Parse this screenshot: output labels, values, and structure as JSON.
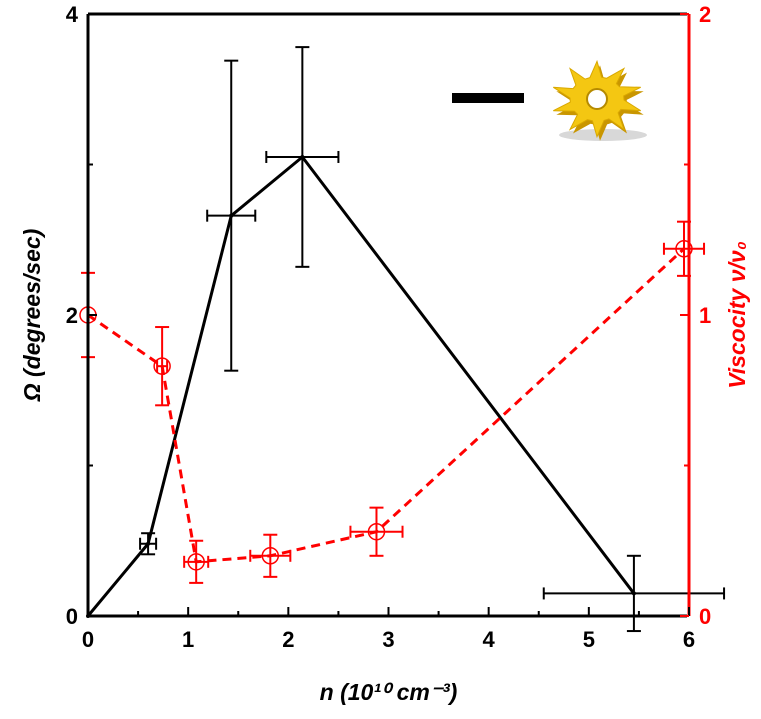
{
  "chart_data": {
    "type": "line",
    "xlabel": "n (10¹⁰ cm⁻³)",
    "ylabel_left": "Ω (degrees/sec)",
    "ylabel_right": "Viscocity ν/ν₀",
    "xlim": [
      0,
      6
    ],
    "ylim_left": [
      0,
      4
    ],
    "ylim_right": [
      0,
      2
    ],
    "x_ticks": [
      "0",
      "1",
      "2",
      "3",
      "4",
      "5",
      "6"
    ],
    "y_left_ticks": [
      "0",
      "2",
      "4"
    ],
    "y_right_ticks": [
      "0",
      "1",
      "2"
    ],
    "grid": false,
    "colors": {
      "omega": "#000000",
      "viscosity": "#ff0000"
    },
    "series": [
      {
        "axis": "left",
        "style": "solid",
        "color": "#000000",
        "points": [
          {
            "x": 0.0,
            "y": 0.0
          },
          {
            "x": 0.6,
            "y": 0.48,
            "xerr": 0.08,
            "yerr": 0.07
          },
          {
            "x": 1.43,
            "y": 2.66,
            "xerr": 0.24,
            "yerr": 1.03
          },
          {
            "x": 2.14,
            "y": 3.05,
            "xerr": 0.36,
            "yerr": 0.73
          },
          {
            "x": 5.45,
            "y": 0.15,
            "xerr": 0.9,
            "yerr": 0.25
          }
        ]
      },
      {
        "axis": "right",
        "style": "dashed",
        "color": "#ff0000",
        "points": [
          {
            "x": 0.0,
            "y": 1.0,
            "xerr": 0,
            "yerr": 0.14
          },
          {
            "x": 0.74,
            "y": 0.83,
            "xerr": 0.05,
            "yerr": 0.13
          },
          {
            "x": 1.08,
            "y": 0.18,
            "xerr": 0.12,
            "yerr": 0.07
          },
          {
            "x": 1.82,
            "y": 0.2,
            "xerr": 0.2,
            "yerr": 0.07
          },
          {
            "x": 2.88,
            "y": 0.28,
            "xerr": 0.26,
            "yerr": 0.08
          },
          {
            "x": 5.95,
            "y": 1.22,
            "xerr": 0.2,
            "yerr": 0.09
          }
        ]
      }
    ],
    "legend": {
      "placement": "top-right",
      "marker": "black-line",
      "icon": "gear-sun-icon"
    }
  }
}
